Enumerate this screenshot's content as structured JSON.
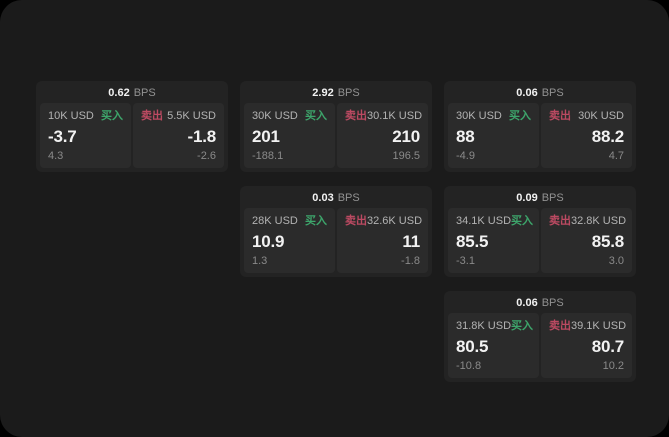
{
  "colors": {
    "outside_bg": "#000000",
    "page_bg": "#1b1b1b",
    "card_bg": "#232323",
    "panel_bg": "#2b2b2b",
    "buy_green": "#3da56b",
    "sell_red": "#bc4a62",
    "text_primary": "#f2f2f2",
    "text_secondary": "#b3b3b3",
    "text_muted": "#8a8a8a"
  },
  "labels": {
    "bps_unit": "BPS",
    "buy": "买入",
    "sell": "卖出"
  },
  "cards": [
    {
      "row": 1,
      "col": 1,
      "bps": "0.62",
      "buy": {
        "amount": "10K USD",
        "value": "-3.7",
        "sub": "4.3"
      },
      "sell": {
        "amount": "5.5K USD",
        "value": "-1.8",
        "sub": "-2.6"
      }
    },
    {
      "row": 1,
      "col": 2,
      "bps": "2.92",
      "buy": {
        "amount": "30K USD",
        "value": "201",
        "sub": "-188.1"
      },
      "sell": {
        "amount": "30.1K USD",
        "value": "210",
        "sub": "196.5"
      }
    },
    {
      "row": 1,
      "col": 3,
      "bps": "0.06",
      "buy": {
        "amount": "30K USD",
        "value": "88",
        "sub": "-4.9"
      },
      "sell": {
        "amount": "30K USD",
        "value": "88.2",
        "sub": "4.7"
      }
    },
    {
      "row": 2,
      "col": 2,
      "bps": "0.03",
      "buy": {
        "amount": "28K USD",
        "value": "10.9",
        "sub": "1.3"
      },
      "sell": {
        "amount": "32.6K USD",
        "value": "11",
        "sub": "-1.8"
      }
    },
    {
      "row": 2,
      "col": 3,
      "bps": "0.09",
      "buy": {
        "amount": "34.1K USD",
        "value": "85.5",
        "sub": "-3.1"
      },
      "sell": {
        "amount": "32.8K USD",
        "value": "85.8",
        "sub": "3.0"
      }
    },
    {
      "row": 3,
      "col": 3,
      "bps": "0.06",
      "buy": {
        "amount": "31.8K USD",
        "value": "80.5",
        "sub": "-10.8"
      },
      "sell": {
        "amount": "39.1K USD",
        "value": "80.7",
        "sub": "10.2"
      }
    }
  ]
}
